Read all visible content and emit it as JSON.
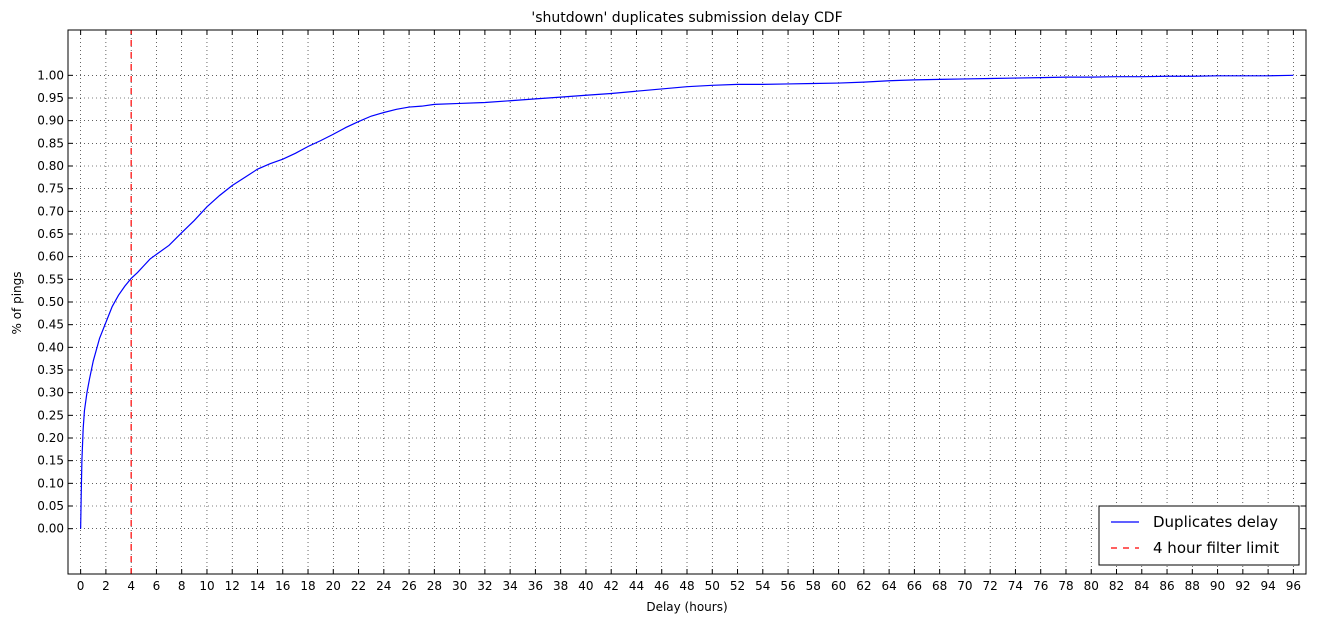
{
  "chart_data": {
    "type": "line",
    "title": "'shutdown' duplicates submission delay CDF",
    "xlabel": "Delay (hours)",
    "ylabel": "% of pings",
    "xlim": [
      -1,
      97
    ],
    "ylim": [
      -0.1,
      1.1
    ],
    "xticks": [
      0,
      2,
      4,
      6,
      8,
      10,
      12,
      14,
      16,
      18,
      20,
      22,
      24,
      26,
      28,
      30,
      32,
      34,
      36,
      38,
      40,
      42,
      44,
      46,
      48,
      50,
      52,
      54,
      56,
      58,
      60,
      62,
      64,
      66,
      68,
      70,
      72,
      74,
      76,
      78,
      80,
      82,
      84,
      86,
      88,
      90,
      92,
      94,
      96
    ],
    "yticks": [
      "0.00",
      "0.05",
      "0.10",
      "0.15",
      "0.20",
      "0.25",
      "0.30",
      "0.35",
      "0.40",
      "0.45",
      "0.50",
      "0.55",
      "0.60",
      "0.65",
      "0.70",
      "0.75",
      "0.80",
      "0.85",
      "0.90",
      "0.95",
      "1.00"
    ],
    "grid": true,
    "legend_position": "bottom-right",
    "colors": {
      "series": "#0000ff",
      "filter": "#ff0000"
    },
    "series": [
      {
        "name": "Duplicates delay",
        "style": "solid",
        "x": [
          0,
          0.05,
          0.1,
          0.2,
          0.3,
          0.5,
          0.7,
          1,
          1.5,
          2,
          2.5,
          3,
          3.5,
          4,
          4.5,
          5,
          5.5,
          6,
          7,
          8,
          9,
          10,
          11,
          12,
          13,
          14,
          15,
          16,
          17,
          18,
          19,
          20,
          21,
          22,
          23,
          24,
          25,
          26,
          27,
          28,
          30,
          32,
          34,
          36,
          38,
          40,
          42,
          44,
          46,
          48,
          50,
          52,
          54,
          56,
          58,
          60,
          62,
          64,
          66,
          68,
          70,
          72,
          74,
          76,
          78,
          80,
          82,
          84,
          86,
          88,
          90,
          92,
          94,
          96
        ],
        "y": [
          0,
          0.08,
          0.15,
          0.22,
          0.26,
          0.3,
          0.33,
          0.37,
          0.42,
          0.455,
          0.49,
          0.515,
          0.535,
          0.552,
          0.565,
          0.58,
          0.595,
          0.605,
          0.625,
          0.653,
          0.68,
          0.71,
          0.735,
          0.757,
          0.775,
          0.793,
          0.805,
          0.815,
          0.828,
          0.843,
          0.856,
          0.87,
          0.885,
          0.898,
          0.91,
          0.918,
          0.925,
          0.93,
          0.932,
          0.936,
          0.938,
          0.94,
          0.944,
          0.948,
          0.952,
          0.956,
          0.96,
          0.965,
          0.97,
          0.975,
          0.978,
          0.98,
          0.98,
          0.981,
          0.982,
          0.983,
          0.985,
          0.988,
          0.99,
          0.991,
          0.992,
          0.993,
          0.994,
          0.995,
          0.996,
          0.996,
          0.997,
          0.997,
          0.998,
          0.998,
          0.999,
          0.999,
          0.999,
          1.0
        ]
      },
      {
        "name": "4 hour filter limit",
        "style": "dashed",
        "x": [
          4,
          4
        ],
        "y": [
          -0.1,
          1.1
        ]
      }
    ]
  }
}
